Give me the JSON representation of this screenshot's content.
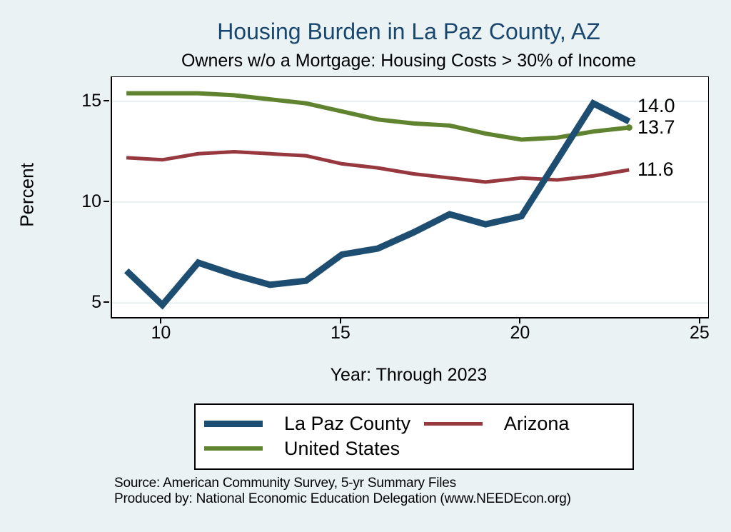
{
  "page": {
    "background_color": "#eaf2f3",
    "plot_background_color": "#ffffff",
    "gridline_color": "#e0ebed",
    "title_color": "#1a476f"
  },
  "chart_data": {
    "type": "line",
    "title": "Housing Burden in La Paz County, AZ",
    "subtitle": "Owners w/o a Mortgage: Housing Costs > 30% of Income",
    "xlabel": "Year: Through 2023",
    "ylabel": "Percent",
    "x": [
      9,
      10,
      11,
      12,
      13,
      14,
      15,
      16,
      17,
      18,
      19,
      20,
      21,
      22,
      23
    ],
    "series": [
      {
        "name": "La Paz County",
        "color": "#1d4d70",
        "line_width": 9,
        "values": [
          6.6,
          4.9,
          7.0,
          6.4,
          5.9,
          6.1,
          7.4,
          7.7,
          8.5,
          9.4,
          8.9,
          9.3,
          12.1,
          14.9,
          14.0
        ],
        "end_label": "14.0",
        "end_marker": false
      },
      {
        "name": "Arizona",
        "color": "#96383e",
        "line_width": 5,
        "values": [
          12.2,
          12.1,
          12.4,
          12.5,
          12.4,
          12.3,
          11.9,
          11.7,
          11.4,
          11.2,
          11.0,
          11.2,
          11.1,
          11.3,
          11.6
        ],
        "end_label": "11.6",
        "end_marker": false
      },
      {
        "name": "United States",
        "color": "#60832f",
        "line_width": 6,
        "values": [
          15.4,
          15.4,
          15.4,
          15.3,
          15.1,
          14.9,
          14.5,
          14.1,
          13.9,
          13.8,
          13.4,
          13.1,
          13.2,
          13.5,
          13.7
        ],
        "end_label": "13.7",
        "end_marker": true
      }
    ],
    "xlim": [
      8.6,
      25.2
    ],
    "ylim": [
      4.3,
      16.2
    ],
    "xticks": [
      10,
      15,
      20,
      25
    ],
    "yticks": [
      5,
      10,
      15
    ],
    "grid": true,
    "legend_position": "bottom"
  },
  "footer": {
    "source_line1": "Source: American Community Survey, 5-yr Summary Files",
    "source_line2": "Produced by: National Economic Education Delegation (www.NEEDEcon.org)"
  }
}
